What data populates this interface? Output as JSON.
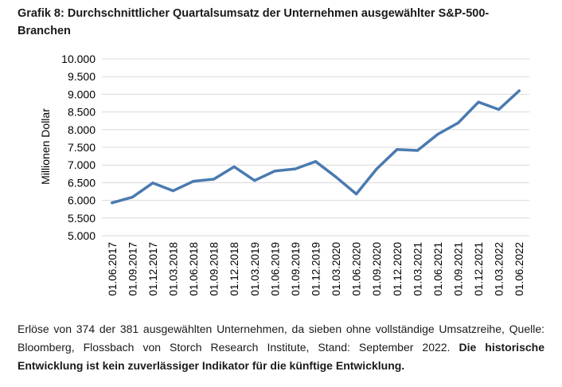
{
  "title": "Grafik 8: Durchschnittlicher Quartalsumsatz der Unternehmen ausgewählter S&P-500-Branchen",
  "chart_data": {
    "type": "line",
    "title": "Grafik 8: Durchschnittlicher Quartalsumsatz der Unternehmen ausgewählter S&P-500-Branchen",
    "xlabel": "",
    "ylabel": "Millionen Dollar",
    "ylim": [
      5000,
      10000
    ],
    "yticks": [
      "5.000",
      "5.500",
      "6.000",
      "6.500",
      "7.000",
      "7.500",
      "8.000",
      "8.500",
      "9.000",
      "9.500",
      "10.000"
    ],
    "grid": true,
    "legend": "none",
    "color": "#4a7ab0",
    "categories": [
      "01.06.2017",
      "01.09.2017",
      "01.12.2017",
      "01.03.2018",
      "01.06.2018",
      "01.09.2018",
      "01.12.2018",
      "01.03.2019",
      "01.06.2019",
      "01.09.2019",
      "01.12.2019",
      "01.03.2020",
      "01.06.2020",
      "01.09.2020",
      "01.12.2020",
      "01.03.2021",
      "01.06.2021",
      "01.09.2021",
      "01.12.2021",
      "01.03.2022",
      "01.06.2022"
    ],
    "series": [
      {
        "values": [
          5930,
          6090,
          6490,
          6270,
          6540,
          6600,
          6950,
          6560,
          6830,
          6890,
          7100,
          6660,
          6180,
          6890,
          7440,
          7410,
          7870,
          8190,
          8780,
          8570,
          9100
        ]
      }
    ]
  },
  "footnote": {
    "text": "Erlöse von 374 der 381 ausgewählten Unternehmen, da sieben ohne vollständige Umsatzreihe, Quelle: Bloomberg, Flossbach von Storch Research Institute, Stand: September 2022.",
    "bold": "Die historische Entwicklung ist kein zuverlässiger Indikator für die künftige Entwicklung."
  }
}
